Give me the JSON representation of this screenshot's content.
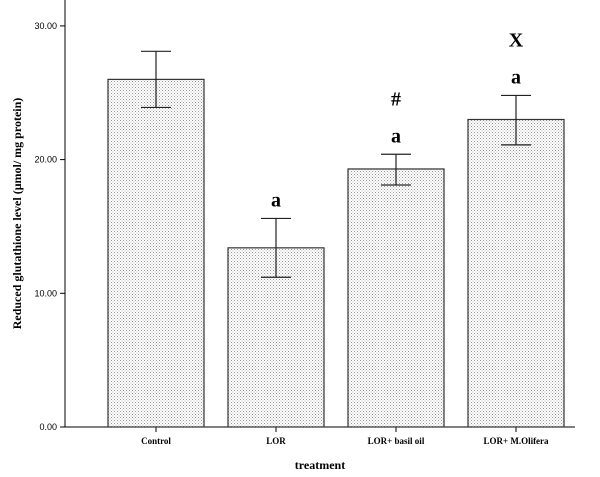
{
  "chart_data": {
    "type": "bar",
    "categories": [
      "Control",
      "LOR",
      "LOR+ basil oil",
      "LOR+ M.Olifera"
    ],
    "values": [
      26.0,
      13.4,
      19.3,
      23.0
    ],
    "error_low": [
      23.9,
      11.2,
      18.1,
      21.1
    ],
    "error_high": [
      28.1,
      15.6,
      20.4,
      24.8
    ],
    "annotations": [
      [],
      [
        "a"
      ],
      [
        "a",
        "#"
      ],
      [
        "a",
        "X"
      ]
    ],
    "xlabel": "treatment",
    "ylabel": "Reduced glutathione level (μmol/ mg protein)",
    "ylim": [
      0,
      30
    ],
    "yticks": [
      0,
      10,
      20,
      30
    ],
    "ytick_labels": [
      "0.00",
      "10.00",
      "20.00",
      "30.00"
    ],
    "bar_fill": "dotted light gray",
    "grid": false,
    "legend": "none"
  }
}
